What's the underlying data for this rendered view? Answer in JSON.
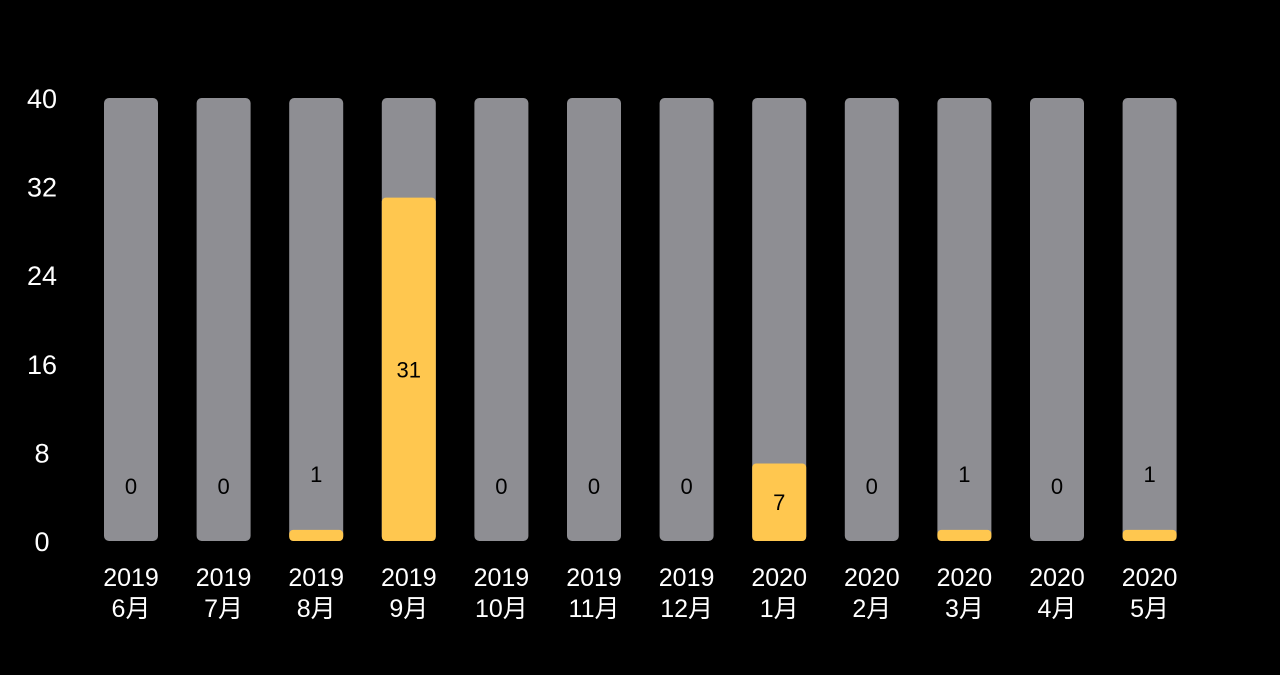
{
  "chart_data": {
    "type": "bar",
    "stacked_on_track": true,
    "categories": [
      {
        "year": "2019",
        "month": "6月"
      },
      {
        "year": "2019",
        "month": "7月"
      },
      {
        "year": "2019",
        "month": "8月"
      },
      {
        "year": "2019",
        "month": "9月"
      },
      {
        "year": "2019",
        "month": "10月"
      },
      {
        "year": "2019",
        "month": "11月"
      },
      {
        "year": "2019",
        "month": "12月"
      },
      {
        "year": "2020",
        "month": "1月"
      },
      {
        "year": "2020",
        "month": "2月"
      },
      {
        "year": "2020",
        "month": "3月"
      },
      {
        "year": "2020",
        "month": "4月"
      },
      {
        "year": "2020",
        "month": "5月"
      }
    ],
    "values": [
      0,
      0,
      1,
      31,
      0,
      0,
      0,
      7,
      0,
      1,
      0,
      1
    ],
    "ylim": [
      0,
      40
    ],
    "yticks": [
      0,
      8,
      16,
      24,
      32,
      40
    ],
    "colors": {
      "background": "#000000",
      "track": "#8e8e93",
      "bar": "#ffc74f",
      "axis_text": "#ffffff",
      "label_text": "#000000"
    }
  }
}
